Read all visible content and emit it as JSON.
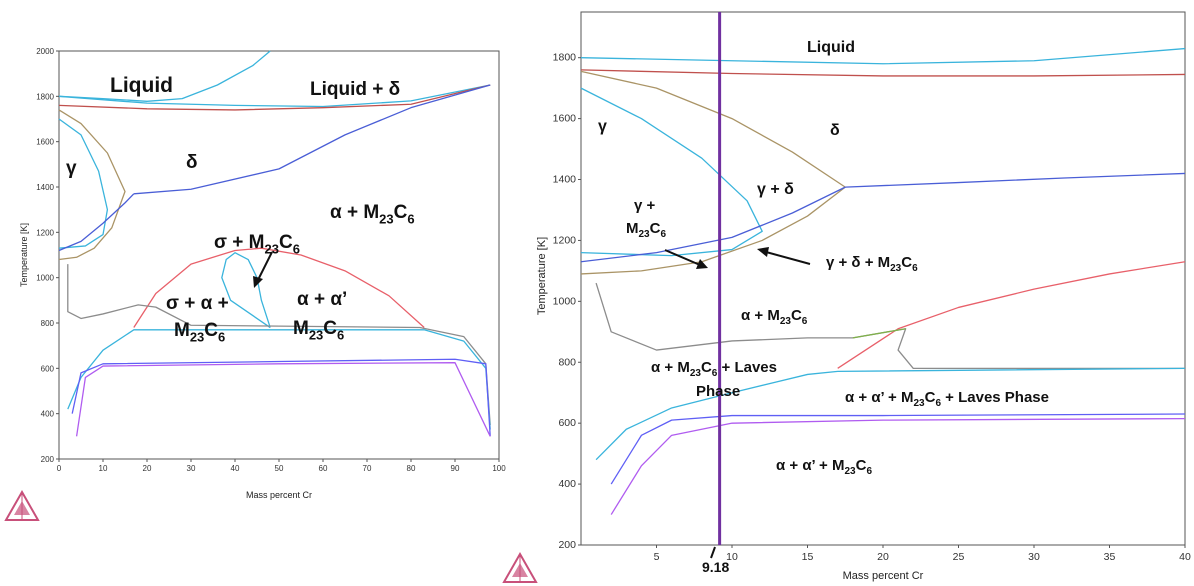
{
  "colors": {
    "liquidus": "#3ab4dc",
    "solidus": "#c0504d",
    "delta_boundary": "#4a5ed6",
    "gamma_loop": "#aa9466",
    "m23c6_gamma": "#4fb3e8",
    "sigma": "#e8606a",
    "alpha_prime": "#8c8c8c",
    "laves": "#7fb04a",
    "low_temp": "#5f5ff5",
    "violet": "#b05cf0",
    "cursor_line": "#7030a0",
    "logo": "#c8507a"
  },
  "icons": [
    "thermo-calc-logo-icon",
    "thermo-calc-logo-icon"
  ],
  "chart_data": [
    {
      "type": "line",
      "title": "",
      "xlabel": "Mass percent Cr",
      "ylabel": "Temperature [K]",
      "xlim": [
        0,
        100
      ],
      "ylim": [
        200,
        2000
      ],
      "x_ticks": [
        "0",
        "10",
        "20",
        "30",
        "40",
        "50",
        "60",
        "70",
        "80",
        "90",
        "100"
      ],
      "y_ticks": [
        "200",
        "400",
        "600",
        "800",
        "1000",
        "1200",
        "1400",
        "1600",
        "1800",
        "2000"
      ],
      "grid": false,
      "legend": "none",
      "region_labels": [
        {
          "id": "liquid",
          "text": "Liquid"
        },
        {
          "id": "liquid-delta",
          "text": "Liquid + δ"
        },
        {
          "id": "gamma",
          "text": "γ"
        },
        {
          "id": "delta",
          "text": "δ"
        },
        {
          "id": "alpha-m23c6",
          "text": "α + M",
          "sub": "23",
          "mid": "C",
          "sub2": "6"
        },
        {
          "id": "sigma-m23c6",
          "text": "σ + M",
          "sub": "23",
          "mid": "C",
          "sub2": "6"
        },
        {
          "id": "sigma-alpha-m23c6-a",
          "text": "σ + α +"
        },
        {
          "id": "sigma-alpha-m23c6-b",
          "text": "M",
          "sub": "23",
          "mid": "C",
          "sub2": "6"
        },
        {
          "id": "alpha-alphaprime-a",
          "text": "α + α’"
        },
        {
          "id": "alpha-alphaprime-b",
          "text": "M",
          "sub": "23",
          "mid": "C",
          "sub2": "6"
        }
      ],
      "series": [
        {
          "key": "liquidus_top",
          "color": "#3ab4dc",
          "points": [
            [
              0,
              1800
            ],
            [
              10,
              1790
            ],
            [
              20,
              1778
            ],
            [
              28,
              1790
            ],
            [
              36,
              1850
            ],
            [
              44,
              1935
            ],
            [
              48,
              2000
            ]
          ]
        },
        {
          "key": "liquidus_low",
          "color": "#3ab4dc",
          "points": [
            [
              0,
              1800
            ],
            [
              20,
              1770
            ],
            [
              40,
              1760
            ],
            [
              60,
              1755
            ],
            [
              80,
              1780
            ],
            [
              98,
              1850
            ]
          ]
        },
        {
          "key": "solidus",
          "color": "#c0504d",
          "points": [
            [
              0,
              1760
            ],
            [
              20,
              1745
            ],
            [
              40,
              1740
            ],
            [
              60,
              1750
            ],
            [
              80,
              1765
            ],
            [
              98,
              1850
            ]
          ]
        },
        {
          "key": "delta_alpha",
          "color": "#4a5ed6",
          "points": [
            [
              17,
              1370
            ],
            [
              30,
              1390
            ],
            [
              50,
              1480
            ],
            [
              65,
              1630
            ],
            [
              80,
              1750
            ],
            [
              98,
              1850
            ]
          ]
        },
        {
          "key": "gamma_loop_outer",
          "color": "#aa9466",
          "points": [
            [
              0,
              1740
            ],
            [
              5,
              1680
            ],
            [
              11,
              1550
            ],
            [
              15,
              1380
            ],
            [
              12,
              1220
            ],
            [
              8,
              1130
            ],
            [
              4,
              1090
            ],
            [
              0,
              1080
            ]
          ]
        },
        {
          "key": "gamma_loop_inner",
          "color": "#3ab4dc",
          "points": [
            [
              0,
              1700
            ],
            [
              5,
              1630
            ],
            [
              9,
              1470
            ],
            [
              11,
              1300
            ],
            [
              10,
              1190
            ],
            [
              6,
              1140
            ],
            [
              0,
              1130
            ]
          ]
        },
        {
          "key": "gamma_m23c6_line",
          "color": "#4a5ed6",
          "points": [
            [
              0,
              1120
            ],
            [
              5,
              1160
            ],
            [
              10,
              1240
            ],
            [
              15,
              1330
            ],
            [
              17,
              1370
            ]
          ]
        },
        {
          "key": "sigma_dome",
          "color": "#e8606a",
          "points": [
            [
              17,
              780
            ],
            [
              22,
              930
            ],
            [
              30,
              1060
            ],
            [
              40,
              1120
            ],
            [
              46,
              1130
            ],
            [
              55,
              1100
            ],
            [
              65,
              1030
            ],
            [
              75,
              920
            ],
            [
              83,
              780
            ]
          ]
        },
        {
          "key": "sigma_inner_loop",
          "color": "#3ab4dc",
          "points": [
            [
              48,
              780
            ],
            [
              46,
              900
            ],
            [
              45,
              1000
            ],
            [
              43,
              1080
            ],
            [
              40,
              1110
            ],
            [
              38,
              1080
            ],
            [
              37,
              1000
            ],
            [
              39,
              900
            ],
            [
              48,
              780
            ]
          ]
        },
        {
          "key": "alpha_prime_dome",
          "color": "#8c8c8c",
          "points": [
            [
              2,
              1060
            ],
            [
              2,
              850
            ],
            [
              5,
              820
            ],
            [
              10,
              840
            ],
            [
              18,
              880
            ],
            [
              22,
              870
            ],
            [
              30,
              790
            ],
            [
              82,
              780
            ],
            [
              92,
              740
            ],
            [
              97,
              620
            ],
            [
              98,
              350
            ]
          ]
        },
        {
          "key": "m23c6_solvus",
          "color": "#3ab4dc",
          "points": [
            [
              2,
              420
            ],
            [
              5,
              560
            ],
            [
              10,
              680
            ],
            [
              17,
              770
            ],
            [
              83,
              770
            ],
            [
              92,
              720
            ],
            [
              97,
              600
            ],
            [
              98,
              330
            ]
          ]
        },
        {
          "key": "low_line",
          "color": "#5f5ff5",
          "points": [
            [
              3,
              400
            ],
            [
              5,
              580
            ],
            [
              10,
              620
            ],
            [
              50,
              630
            ],
            [
              90,
              640
            ],
            [
              97,
              620
            ],
            [
              98,
              300
            ]
          ]
        },
        {
          "key": "violet_line",
          "color": "#b05cf0",
          "points": [
            [
              4,
              300
            ],
            [
              6,
              560
            ],
            [
              10,
              610
            ],
            [
              50,
              620
            ],
            [
              90,
              625
            ],
            [
              98,
              300
            ]
          ]
        }
      ]
    },
    {
      "type": "line",
      "title": "",
      "xlabel": "Mass percent Cr",
      "ylabel": "Temperature [K]",
      "xlim": [
        0,
        40
      ],
      "ylim": [
        200,
        1950
      ],
      "x_ticks": [
        "5",
        "10",
        "15",
        "20",
        "25",
        "30",
        "35",
        "40"
      ],
      "y_ticks": [
        "200",
        "400",
        "600",
        "800",
        "1000",
        "1200",
        "1400",
        "1600",
        "1800"
      ],
      "grid": false,
      "legend": "none",
      "marker": {
        "x": 9.18,
        "label": "9.18"
      },
      "region_labels": [
        {
          "id": "liquid",
          "text": "Liquid"
        },
        {
          "id": "gamma",
          "text": "γ"
        },
        {
          "id": "delta",
          "text": "δ"
        },
        {
          "id": "gamma-delta",
          "text": "γ + δ"
        },
        {
          "id": "gamma-m23c6-a",
          "text": "γ +"
        },
        {
          "id": "gamma-m23c6-b",
          "text": "M",
          "sub": "23",
          "mid": "C",
          "sub2": "6"
        },
        {
          "id": "gamma-delta-m23c6",
          "text": "γ + δ + M",
          "sub": "23",
          "mid": "C",
          "sub2": "6"
        },
        {
          "id": "alpha-m23c6",
          "text": "α + M",
          "sub": "23",
          "mid": "C",
          "sub2": "6"
        },
        {
          "id": "alpha-m23c6-laves-a",
          "text": "α + M",
          "sub": "23",
          "mid": "C",
          "sub2": "6",
          "tail": " + Laves"
        },
        {
          "id": "alpha-m23c6-laves-b",
          "text": "Phase"
        },
        {
          "id": "alpha-alphaprime-m23c6-laves",
          "text": "α + α’ + M",
          "sub": "23",
          "mid": "C",
          "sub2": "6",
          "tail": " + Laves Phase"
        },
        {
          "id": "alpha-alphaprime-m23c6",
          "text": "α + α’ + M",
          "sub": "23",
          "mid": "C",
          "sub2": "6"
        }
      ],
      "series": [
        {
          "key": "liquidus",
          "color": "#3ab4dc",
          "points": [
            [
              0,
              1800
            ],
            [
              10,
              1790
            ],
            [
              20,
              1780
            ],
            [
              30,
              1790
            ],
            [
              40,
              1830
            ]
          ]
        },
        {
          "key": "solidus",
          "color": "#c0504d",
          "points": [
            [
              0,
              1760
            ],
            [
              10,
              1748
            ],
            [
              20,
              1740
            ],
            [
              30,
              1740
            ],
            [
              40,
              1745
            ]
          ]
        },
        {
          "key": "gamma_loop_outer",
          "color": "#aa9466",
          "points": [
            [
              0,
              1755
            ],
            [
              5,
              1700
            ],
            [
              10,
              1600
            ],
            [
              14,
              1490
            ],
            [
              17.5,
              1375
            ],
            [
              15,
              1280
            ],
            [
              12,
              1200
            ],
            [
              8,
              1130
            ],
            [
              4,
              1100
            ],
            [
              0,
              1090
            ]
          ]
        },
        {
          "key": "gamma_loop_inner",
          "color": "#3ab4dc",
          "points": [
            [
              0,
              1700
            ],
            [
              4,
              1600
            ],
            [
              8,
              1470
            ],
            [
              11,
              1330
            ],
            [
              12,
              1230
            ],
            [
              10,
              1170
            ],
            [
              6,
              1150
            ],
            [
              0,
              1160
            ]
          ]
        },
        {
          "key": "delta_alpha",
          "color": "#4a5ed6",
          "points": [
            [
              17.5,
              1375
            ],
            [
              25,
              1390
            ],
            [
              32,
              1405
            ],
            [
              40,
              1420
            ]
          ]
        },
        {
          "key": "gamma_m23c6",
          "color": "#4a5ed6",
          "points": [
            [
              0,
              1130
            ],
            [
              5,
              1160
            ],
            [
              10,
              1210
            ],
            [
              14,
              1290
            ],
            [
              17.5,
              1375
            ]
          ]
        },
        {
          "key": "sigma_boundary",
          "color": "#e8606a",
          "points": [
            [
              17,
              780
            ],
            [
              21,
              910
            ],
            [
              25,
              980
            ],
            [
              30,
              1040
            ],
            [
              35,
              1090
            ],
            [
              40,
              1130
            ]
          ]
        },
        {
          "key": "alpha_prime",
          "color": "#8c8c8c",
          "points": [
            [
              1,
              1060
            ],
            [
              2,
              900
            ],
            [
              5,
              840
            ],
            [
              10,
              870
            ],
            [
              15,
              880
            ],
            [
              18,
              880
            ],
            [
              21.5,
              910
            ],
            [
              21,
              840
            ],
            [
              22,
              780
            ],
            [
              40,
              780
            ]
          ]
        },
        {
          "key": "laves",
          "color": "#7fb04a",
          "points": [
            [
              18,
              880
            ],
            [
              21.5,
              910
            ]
          ]
        },
        {
          "key": "m23c6_solvus",
          "color": "#3ab4dc",
          "points": [
            [
              1,
              480
            ],
            [
              3,
              580
            ],
            [
              6,
              650
            ],
            [
              10,
              700
            ],
            [
              15,
              760
            ],
            [
              17,
              770
            ],
            [
              40,
              780
            ]
          ]
        },
        {
          "key": "low_line",
          "color": "#5f5ff5",
          "points": [
            [
              2,
              400
            ],
            [
              4,
              560
            ],
            [
              6,
              610
            ],
            [
              10,
              625
            ],
            [
              20,
              625
            ],
            [
              40,
              630
            ]
          ]
        },
        {
          "key": "violet_line",
          "color": "#b05cf0",
          "points": [
            [
              2,
              300
            ],
            [
              4,
              460
            ],
            [
              6,
              560
            ],
            [
              10,
              600
            ],
            [
              20,
              610
            ],
            [
              40,
              615
            ]
          ]
        }
      ]
    }
  ]
}
